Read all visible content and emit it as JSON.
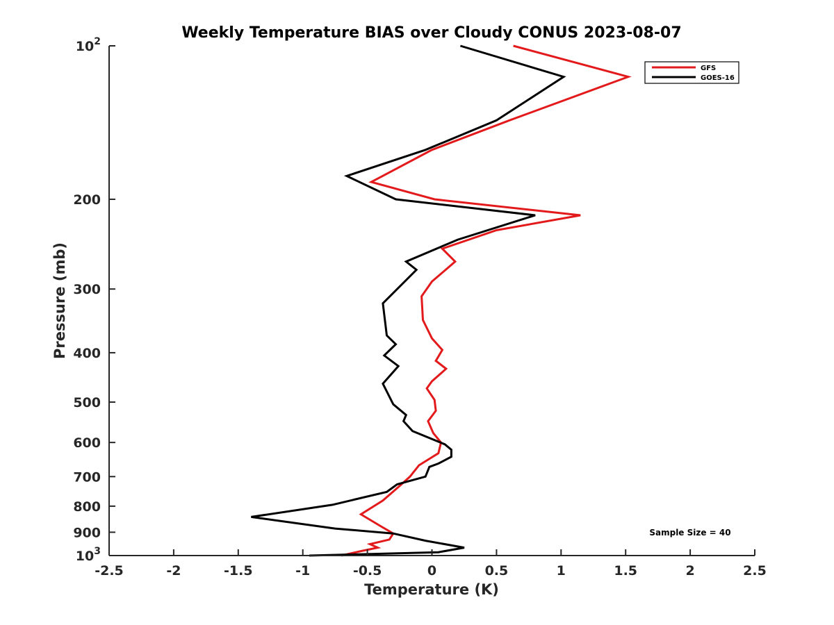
{
  "chart_data": {
    "type": "line",
    "title": "Weekly Temperature BIAS over Cloudy CONUS 2023-08-07",
    "xlabel": "Temperature (K)",
    "ylabel": "Pressure (mb)",
    "xlim": [
      -2.5,
      2.5
    ],
    "ylim": [
      100,
      1000
    ],
    "y_scale": "log",
    "y_reversed": true,
    "grid": false,
    "legend_position": "top-right",
    "x_ticks": [
      {
        "value": -2.5,
        "label": "-2.5"
      },
      {
        "value": -2,
        "label": "-2"
      },
      {
        "value": -1.5,
        "label": "-1.5"
      },
      {
        "value": -1,
        "label": "-1"
      },
      {
        "value": -0.5,
        "label": "-0.5"
      },
      {
        "value": 0,
        "label": "0"
      },
      {
        "value": 0.5,
        "label": "0.5"
      },
      {
        "value": 1,
        "label": "1"
      },
      {
        "value": 1.5,
        "label": "1.5"
      },
      {
        "value": 2,
        "label": "2"
      },
      {
        "value": 2.5,
        "label": "2.5"
      }
    ],
    "y_ticks": [
      {
        "value": 100,
        "label": "10",
        "sup": "2"
      },
      {
        "value": 200,
        "label": "200",
        "sup": ""
      },
      {
        "value": 300,
        "label": "300",
        "sup": ""
      },
      {
        "value": 400,
        "label": "400",
        "sup": ""
      },
      {
        "value": 500,
        "label": "500",
        "sup": ""
      },
      {
        "value": 600,
        "label": "600",
        "sup": ""
      },
      {
        "value": 700,
        "label": "700",
        "sup": ""
      },
      {
        "value": 800,
        "label": "800",
        "sup": ""
      },
      {
        "value": 900,
        "label": "900",
        "sup": ""
      },
      {
        "value": 1000,
        "label": "10",
        "sup": "3"
      }
    ],
    "series": [
      {
        "name": "GFS",
        "color": "#e31a1c",
        "points": [
          [
            0.63,
            100
          ],
          [
            1.52,
            115
          ],
          [
            0.6,
            140
          ],
          [
            0,
            160
          ],
          [
            -0.47,
            185
          ],
          [
            0.02,
            200
          ],
          [
            1.15,
            215
          ],
          [
            0.5,
            230
          ],
          [
            0.08,
            250
          ],
          [
            0.18,
            265
          ],
          [
            0,
            290
          ],
          [
            -0.08,
            310
          ],
          [
            -0.07,
            345
          ],
          [
            0,
            375
          ],
          [
            0.08,
            395
          ],
          [
            0.03,
            415
          ],
          [
            0.11,
            430
          ],
          [
            0,
            455
          ],
          [
            -0.04,
            470
          ],
          [
            0.02,
            495
          ],
          [
            0.03,
            520
          ],
          [
            -0.03,
            545
          ],
          [
            0.01,
            575
          ],
          [
            0.07,
            600
          ],
          [
            0.05,
            630
          ],
          [
            -0.1,
            665
          ],
          [
            -0.17,
            700
          ],
          [
            -0.25,
            730
          ],
          [
            -0.38,
            780
          ],
          [
            -0.55,
            830
          ],
          [
            -0.4,
            875
          ],
          [
            -0.3,
            905
          ],
          [
            -0.33,
            930
          ],
          [
            -0.48,
            950
          ],
          [
            -0.42,
            965
          ],
          [
            -0.55,
            980
          ],
          [
            -0.7,
            1000
          ]
        ]
      },
      {
        "name": "GOES-16",
        "color": "#000000",
        "points": [
          [
            0.22,
            100
          ],
          [
            1.02,
            115
          ],
          [
            0.5,
            140
          ],
          [
            -0.05,
            160
          ],
          [
            -0.66,
            180
          ],
          [
            -0.28,
            200
          ],
          [
            0.8,
            215
          ],
          [
            0.2,
            240
          ],
          [
            -0.2,
            265
          ],
          [
            -0.12,
            275
          ],
          [
            -0.38,
            320
          ],
          [
            -0.35,
            370
          ],
          [
            -0.28,
            385
          ],
          [
            -0.37,
            405
          ],
          [
            -0.26,
            425
          ],
          [
            -0.38,
            460
          ],
          [
            -0.3,
            505
          ],
          [
            -0.2,
            530
          ],
          [
            -0.22,
            545
          ],
          [
            -0.15,
            570
          ],
          [
            0.1,
            605
          ],
          [
            0.15,
            620
          ],
          [
            0.15,
            640
          ],
          [
            0.05,
            660
          ],
          [
            -0.02,
            670
          ],
          [
            -0.05,
            700
          ],
          [
            -0.27,
            725
          ],
          [
            -0.35,
            750
          ],
          [
            -0.77,
            795
          ],
          [
            -1.4,
            840
          ],
          [
            -0.75,
            885
          ],
          [
            -0.3,
            905
          ],
          [
            -0.05,
            935
          ],
          [
            0.25,
            965
          ],
          [
            0.05,
            985
          ],
          [
            -0.6,
            995
          ],
          [
            -0.95,
            1000
          ]
        ]
      }
    ],
    "annotations": [
      {
        "text": "Sample Size = 40",
        "position": "bottom-right"
      }
    ]
  }
}
